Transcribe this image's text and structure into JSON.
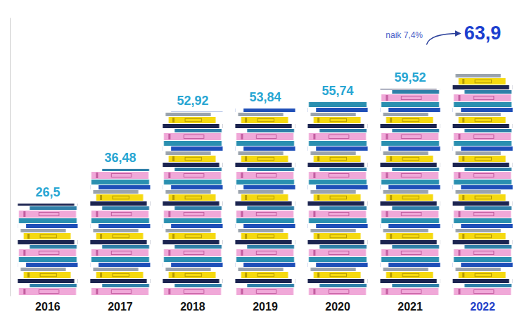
{
  "chart_data": {
    "type": "bar",
    "categories": [
      "2016",
      "2017",
      "2018",
      "2019",
      "2020",
      "2021",
      "2022"
    ],
    "values": [
      26.5,
      36.48,
      52.92,
      53.84,
      55.74,
      59.52,
      63.9
    ],
    "value_labels": [
      "26,5",
      "36,48",
      "52,92",
      "53,84",
      "55,74",
      "59,52",
      "63,9"
    ],
    "data_labels": true,
    "ylim": [
      0,
      80
    ],
    "tick_labels": "x",
    "annotations": [
      {
        "text": "naik 7,4%"
      }
    ]
  }
}
